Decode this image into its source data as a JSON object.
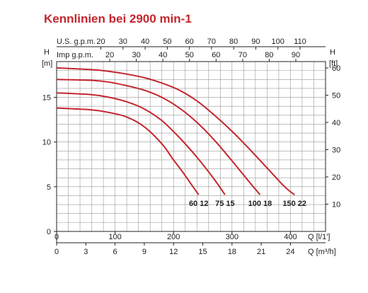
{
  "chart_data": {
    "type": "line",
    "title": "Kennlinien bei 2900 min-1",
    "colors": {
      "curve": "#c4262e",
      "grid": "#999999",
      "axis": "#222222"
    },
    "y_left": {
      "label": "H",
      "unit": "[m]",
      "ticks": [
        0,
        5,
        10,
        15
      ],
      "range": [
        0,
        19
      ]
    },
    "y_right": {
      "label": "H",
      "unit": "[ft]",
      "ticks": [
        10,
        20,
        30,
        40,
        50,
        60
      ]
    },
    "x_top_usgpm": {
      "label": "U.S. g.p.m.",
      "ticks": [
        20,
        30,
        40,
        50,
        60,
        70,
        80,
        90,
        100,
        110
      ]
    },
    "x_top_impgpm": {
      "label": "Imp g.p.m.",
      "ticks": [
        20,
        30,
        40,
        50,
        60,
        70,
        80,
        90
      ]
    },
    "x_bottom_lmin": {
      "label": "Q [l/1']",
      "ticks": [
        0,
        100,
        200,
        300,
        400
      ],
      "range": [
        0,
        460
      ]
    },
    "x_bottom_m3h": {
      "label": "Q [m³/h]",
      "ticks": [
        0,
        3,
        6,
        9,
        12,
        15,
        18,
        21,
        24
      ]
    },
    "grid": true,
    "x": [
      0,
      60,
      90,
      120,
      150,
      180,
      210,
      240,
      270,
      300,
      330,
      360,
      390,
      420
    ],
    "series": [
      {
        "name": "60 12",
        "x": [
          0,
          60,
          90,
          120,
          150,
          180,
          200,
          215,
          230,
          243
        ],
        "y": [
          13.8,
          13.6,
          13.3,
          12.8,
          11.7,
          9.8,
          8.0,
          6.7,
          5.3,
          4.1
        ]
      },
      {
        "name": "75 15",
        "x": [
          0,
          60,
          90,
          120,
          150,
          180,
          210,
          240,
          270,
          288
        ],
        "y": [
          15.5,
          15.3,
          15.0,
          14.5,
          13.7,
          12.4,
          10.5,
          8.3,
          5.8,
          4.1
        ]
      },
      {
        "name": "100 18",
        "x": [
          0,
          60,
          90,
          120,
          150,
          180,
          210,
          240,
          270,
          300,
          330,
          348
        ],
        "y": [
          17.0,
          16.9,
          16.7,
          16.3,
          15.8,
          15.0,
          13.8,
          12.2,
          10.2,
          7.9,
          5.5,
          4.1
        ]
      },
      {
        "name": "150 22",
        "x": [
          0,
          60,
          90,
          120,
          150,
          180,
          210,
          240,
          270,
          300,
          330,
          360,
          390,
          407
        ],
        "y": [
          18.3,
          18.1,
          17.9,
          17.6,
          17.2,
          16.6,
          15.8,
          14.6,
          13.0,
          11.2,
          9.2,
          7.1,
          5.0,
          4.1
        ]
      }
    ]
  }
}
